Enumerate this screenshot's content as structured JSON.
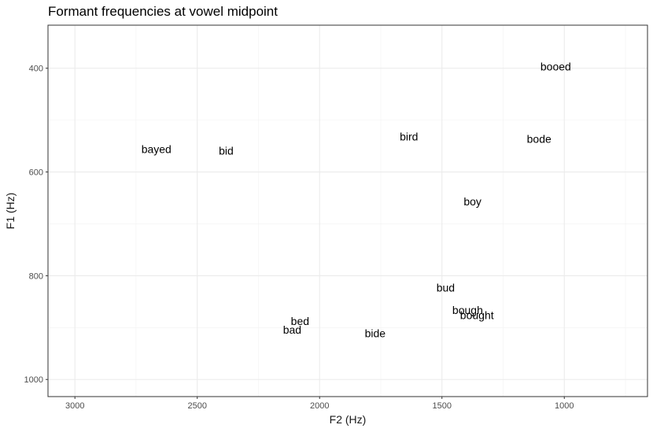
{
  "chart_data": {
    "type": "scatter",
    "title": "Formant frequencies at vowel midpoint",
    "xlabel": "F2 (Hz)",
    "ylabel": "F1 (Hz)",
    "x_reversed": true,
    "y_reversed": true,
    "xlim": [
      3110,
      660
    ],
    "ylim": [
      317,
      1033
    ],
    "x_ticks": [
      3000,
      2500,
      2000,
      1500,
      1000
    ],
    "y_ticks": [
      400,
      600,
      800,
      1000
    ],
    "grid": true,
    "points": [
      {
        "label": "booed",
        "x": 1035,
        "y": 397
      },
      {
        "label": "bode",
        "x": 1103,
        "y": 536
      },
      {
        "label": "bird",
        "x": 1635,
        "y": 532
      },
      {
        "label": "bayed",
        "x": 2667,
        "y": 556
      },
      {
        "label": "bid",
        "x": 2382,
        "y": 559
      },
      {
        "label": "boy",
        "x": 1375,
        "y": 657
      },
      {
        "label": "bud",
        "x": 1485,
        "y": 823
      },
      {
        "label": "bough",
        "x": 1395,
        "y": 866
      },
      {
        "label": "bought",
        "x": 1357,
        "y": 876
      },
      {
        "label": "bed",
        "x": 2080,
        "y": 887
      },
      {
        "label": "bad",
        "x": 2112,
        "y": 904
      },
      {
        "label": "bide",
        "x": 1773,
        "y": 911
      }
    ]
  }
}
